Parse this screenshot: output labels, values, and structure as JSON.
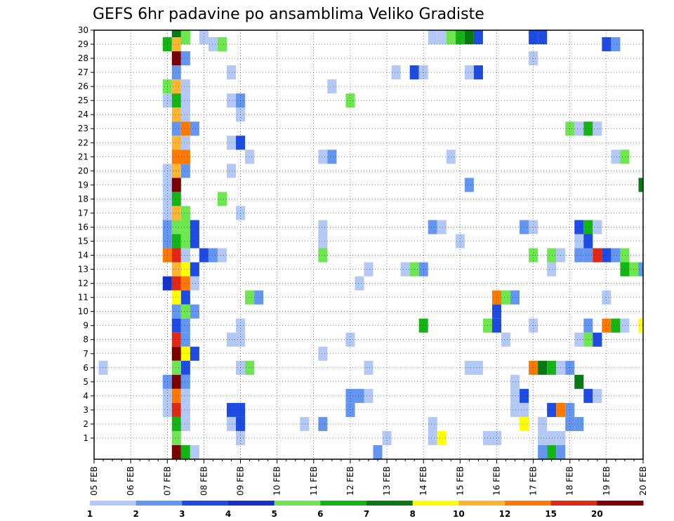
{
  "chart_data": {
    "type": "heatmap",
    "title": "GEFS 6hr padavine po ansamblima Veliko Gradiste",
    "xlabel": "",
    "ylabel": "",
    "x_tick_labels": [
      "05 FEB",
      "06 FEB",
      "07 FEB",
      "08 FEB",
      "09 FEB",
      "10 FEB",
      "11 FEB",
      "12 FEB",
      "13 FEB",
      "14 FEB",
      "15 FEB",
      "16 FEB",
      "17 FEB",
      "18 FEB",
      "19 FEB",
      "20 FEB"
    ],
    "y_tick_labels": [
      "1",
      "2",
      "3",
      "4",
      "5",
      "6",
      "7",
      "8",
      "9",
      "10",
      "11",
      "12",
      "13",
      "14",
      "15",
      "16",
      "17",
      "18",
      "19",
      "20",
      "21",
      "22",
      "23",
      "24",
      "25",
      "26",
      "27",
      "28",
      "29",
      "30"
    ],
    "x_range_steps": [
      0,
      60
    ],
    "y_range_members": [
      0,
      30
    ],
    "grid": true,
    "colorbar": {
      "labels": [
        "1",
        "2",
        "3",
        "4",
        "5",
        "6",
        "7",
        "8",
        "10",
        "12",
        "15",
        "20"
      ],
      "colors": [
        "#b4c8f5",
        "#6496f0",
        "#1e4be1",
        "#1432c8",
        "#6ee650",
        "#14b414",
        "#0a7814",
        "#ffff00",
        "#ffb432",
        "#ff7800",
        "#e12814",
        "#7d0000"
      ]
    },
    "cells": [
      [
        30,
        9,
        6
      ],
      [
        30,
        10,
        4
      ],
      [
        30,
        12,
        0
      ],
      [
        30,
        37,
        0
      ],
      [
        30,
        38,
        0
      ],
      [
        30,
        39,
        4
      ],
      [
        30,
        40,
        5
      ],
      [
        30,
        41,
        6
      ],
      [
        30,
        42,
        2
      ],
      [
        30,
        48,
        2
      ],
      [
        30,
        49,
        2
      ],
      [
        29,
        8,
        5
      ],
      [
        29,
        9,
        8
      ],
      [
        29,
        13,
        0
      ],
      [
        29,
        14,
        4
      ],
      [
        29,
        56,
        2
      ],
      [
        29,
        57,
        1
      ],
      [
        28,
        9,
        11
      ],
      [
        28,
        10,
        1
      ],
      [
        28,
        48,
        0
      ],
      [
        27,
        9,
        1
      ],
      [
        27,
        15,
        0
      ],
      [
        27,
        33,
        0
      ],
      [
        27,
        35,
        2
      ],
      [
        27,
        36,
        0
      ],
      [
        27,
        41,
        0
      ],
      [
        27,
        42,
        2
      ],
      [
        26,
        8,
        4
      ],
      [
        26,
        9,
        8
      ],
      [
        26,
        10,
        0
      ],
      [
        26,
        26,
        0
      ],
      [
        25,
        8,
        0
      ],
      [
        25,
        9,
        5
      ],
      [
        25,
        10,
        0
      ],
      [
        25,
        15,
        0
      ],
      [
        25,
        16,
        1
      ],
      [
        25,
        28,
        4
      ],
      [
        24,
        9,
        8
      ],
      [
        24,
        10,
        0
      ],
      [
        24,
        16,
        0
      ],
      [
        23,
        9,
        1
      ],
      [
        23,
        10,
        9
      ],
      [
        23,
        11,
        1
      ],
      [
        23,
        52,
        4
      ],
      [
        23,
        53,
        0
      ],
      [
        23,
        54,
        5
      ],
      [
        23,
        55,
        0
      ],
      [
        22,
        9,
        8
      ],
      [
        22,
        10,
        0
      ],
      [
        22,
        15,
        0
      ],
      [
        22,
        16,
        2
      ],
      [
        21,
        9,
        9
      ],
      [
        21,
        10,
        9
      ],
      [
        21,
        17,
        0
      ],
      [
        21,
        25,
        0
      ],
      [
        21,
        26,
        1
      ],
      [
        21,
        39,
        0
      ],
      [
        21,
        57,
        0
      ],
      [
        21,
        58,
        4
      ],
      [
        20,
        8,
        0
      ],
      [
        20,
        9,
        8
      ],
      [
        20,
        10,
        1
      ],
      [
        20,
        15,
        0
      ],
      [
        19,
        8,
        0
      ],
      [
        19,
        9,
        11
      ],
      [
        19,
        41,
        1
      ],
      [
        19,
        60,
        6
      ],
      [
        18,
        8,
        0
      ],
      [
        18,
        9,
        5
      ],
      [
        18,
        14,
        4
      ],
      [
        17,
        8,
        0
      ],
      [
        17,
        9,
        8
      ],
      [
        17,
        10,
        4
      ],
      [
        17,
        16,
        0
      ],
      [
        16,
        8,
        1
      ],
      [
        16,
        9,
        4
      ],
      [
        16,
        10,
        4
      ],
      [
        16,
        11,
        2
      ],
      [
        16,
        25,
        0
      ],
      [
        16,
        37,
        1
      ],
      [
        16,
        38,
        0
      ],
      [
        16,
        47,
        1
      ],
      [
        16,
        48,
        0
      ],
      [
        16,
        53,
        2
      ],
      [
        16,
        54,
        5
      ],
      [
        16,
        55,
        0
      ],
      [
        15,
        8,
        1
      ],
      [
        15,
        9,
        5
      ],
      [
        15,
        10,
        4
      ],
      [
        15,
        11,
        2
      ],
      [
        15,
        25,
        0
      ],
      [
        15,
        40,
        0
      ],
      [
        15,
        53,
        0
      ],
      [
        15,
        54,
        2
      ],
      [
        14,
        8,
        9
      ],
      [
        14,
        9,
        10
      ],
      [
        14,
        10,
        0
      ],
      [
        14,
        12,
        2
      ],
      [
        14,
        13,
        1
      ],
      [
        14,
        14,
        0
      ],
      [
        14,
        25,
        4
      ],
      [
        14,
        48,
        4
      ],
      [
        14,
        50,
        4
      ],
      [
        14,
        51,
        0
      ],
      [
        14,
        53,
        1
      ],
      [
        14,
        54,
        1
      ],
      [
        14,
        55,
        10
      ],
      [
        14,
        56,
        2
      ],
      [
        14,
        57,
        1
      ],
      [
        14,
        58,
        4
      ],
      [
        13,
        9,
        8
      ],
      [
        13,
        10,
        7
      ],
      [
        13,
        11,
        2
      ],
      [
        13,
        30,
        0
      ],
      [
        13,
        34,
        0
      ],
      [
        13,
        35,
        4
      ],
      [
        13,
        36,
        1
      ],
      [
        13,
        50,
        0
      ],
      [
        13,
        58,
        5
      ],
      [
        13,
        59,
        4
      ],
      [
        13,
        60,
        1
      ],
      [
        12,
        8,
        3
      ],
      [
        12,
        9,
        10
      ],
      [
        12,
        10,
        9
      ],
      [
        12,
        11,
        0
      ],
      [
        12,
        29,
        0
      ],
      [
        11,
        9,
        7
      ],
      [
        11,
        10,
        2
      ],
      [
        11,
        17,
        4
      ],
      [
        11,
        18,
        1
      ],
      [
        11,
        44,
        9
      ],
      [
        11,
        45,
        4
      ],
      [
        11,
        46,
        1
      ],
      [
        11,
        56,
        0
      ],
      [
        10,
        9,
        1
      ],
      [
        10,
        10,
        4
      ],
      [
        10,
        11,
        1
      ],
      [
        10,
        44,
        2
      ],
      [
        9,
        9,
        2
      ],
      [
        9,
        10,
        1
      ],
      [
        9,
        16,
        0
      ],
      [
        9,
        36,
        5
      ],
      [
        9,
        43,
        4
      ],
      [
        9,
        44,
        2
      ],
      [
        9,
        48,
        0
      ],
      [
        9,
        54,
        1
      ],
      [
        9,
        56,
        9
      ],
      [
        9,
        57,
        5
      ],
      [
        9,
        58,
        0
      ],
      [
        9,
        60,
        7
      ],
      [
        8,
        9,
        10
      ],
      [
        8,
        10,
        1
      ],
      [
        8,
        15,
        0
      ],
      [
        8,
        16,
        0
      ],
      [
        8,
        28,
        0
      ],
      [
        8,
        45,
        0
      ],
      [
        8,
        53,
        0
      ],
      [
        8,
        54,
        4
      ],
      [
        8,
        55,
        2
      ],
      [
        7,
        9,
        11
      ],
      [
        7,
        10,
        7
      ],
      [
        7,
        11,
        2
      ],
      [
        7,
        25,
        0
      ],
      [
        6,
        1,
        0
      ],
      [
        6,
        9,
        4
      ],
      [
        6,
        10,
        2
      ],
      [
        6,
        16,
        0
      ],
      [
        6,
        17,
        4
      ],
      [
        6,
        30,
        0
      ],
      [
        6,
        41,
        0
      ],
      [
        6,
        42,
        0
      ],
      [
        6,
        48,
        9
      ],
      [
        6,
        49,
        6
      ],
      [
        6,
        50,
        5
      ],
      [
        6,
        51,
        0
      ],
      [
        6,
        52,
        1
      ],
      [
        5,
        8,
        1
      ],
      [
        5,
        9,
        11
      ],
      [
        5,
        10,
        1
      ],
      [
        5,
        46,
        0
      ],
      [
        5,
        53,
        6
      ],
      [
        4,
        8,
        0
      ],
      [
        4,
        9,
        9
      ],
      [
        4,
        10,
        0
      ],
      [
        4,
        28,
        1
      ],
      [
        4,
        29,
        1
      ],
      [
        4,
        30,
        0
      ],
      [
        4,
        46,
        0
      ],
      [
        4,
        47,
        2
      ],
      [
        4,
        54,
        2
      ],
      [
        4,
        55,
        0
      ],
      [
        3,
        8,
        0
      ],
      [
        3,
        9,
        10
      ],
      [
        3,
        10,
        0
      ],
      [
        3,
        15,
        2
      ],
      [
        3,
        16,
        2
      ],
      [
        3,
        28,
        1
      ],
      [
        3,
        46,
        0
      ],
      [
        3,
        47,
        0
      ],
      [
        3,
        50,
        2
      ],
      [
        3,
        51,
        9
      ],
      [
        3,
        52,
        1
      ],
      [
        2,
        9,
        5
      ],
      [
        2,
        10,
        0
      ],
      [
        2,
        15,
        0
      ],
      [
        2,
        16,
        2
      ],
      [
        2,
        23,
        0
      ],
      [
        2,
        25,
        1
      ],
      [
        2,
        37,
        0
      ],
      [
        2,
        47,
        7
      ],
      [
        2,
        49,
        0
      ],
      [
        2,
        52,
        1
      ],
      [
        2,
        53,
        1
      ],
      [
        1,
        9,
        4
      ],
      [
        1,
        16,
        0
      ],
      [
        1,
        32,
        0
      ],
      [
        1,
        37,
        0
      ],
      [
        1,
        38,
        7
      ],
      [
        1,
        43,
        0
      ],
      [
        1,
        44,
        0
      ],
      [
        1,
        49,
        0
      ],
      [
        1,
        50,
        0
      ],
      [
        1,
        51,
        0
      ],
      [
        0,
        9,
        11
      ],
      [
        0,
        10,
        5
      ],
      [
        0,
        11,
        0
      ],
      [
        0,
        31,
        1
      ],
      [
        0,
        49,
        1
      ],
      [
        0,
        50,
        5
      ],
      [
        0,
        51,
        1
      ]
    ]
  }
}
